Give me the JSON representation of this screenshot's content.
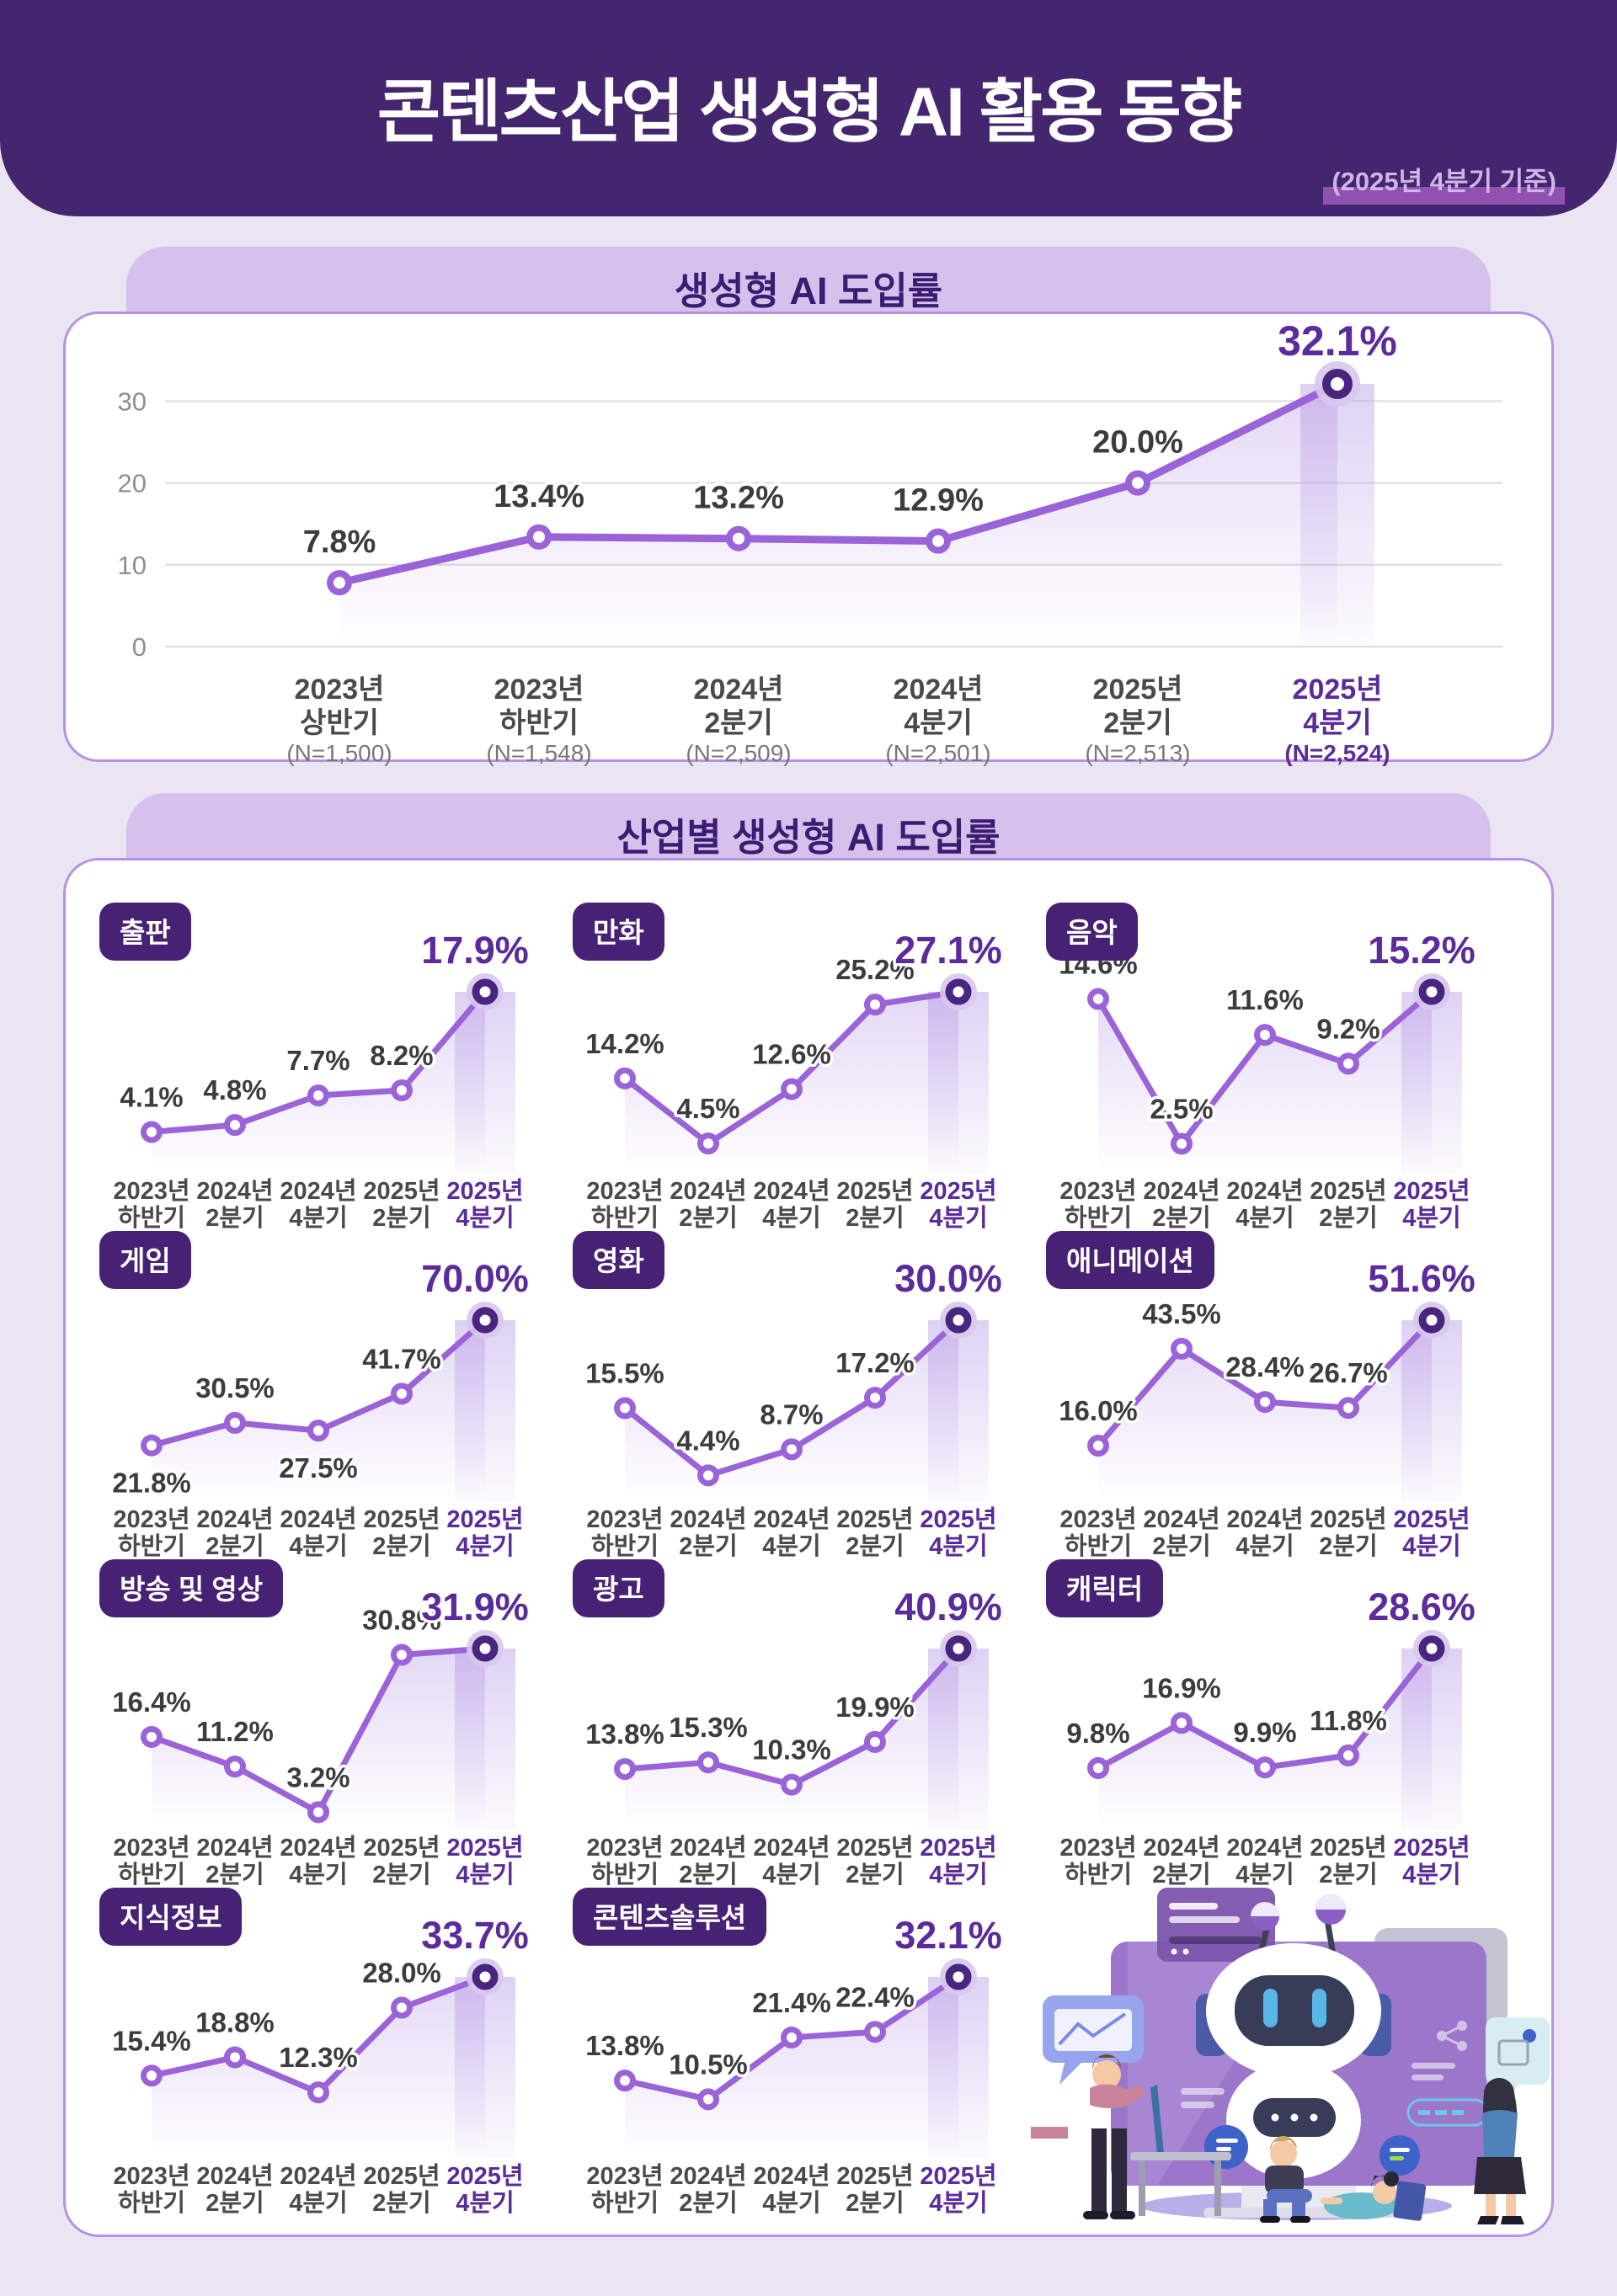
{
  "header": {
    "title": "콘텐츠산업 생성형 AI 활용 동향",
    "subtitle": "(2025년 4분기 기준)"
  },
  "sections": {
    "adoption": {
      "title": "생성형 AI 도입률"
    },
    "by_industry": {
      "title": "산업별 생성형 AI 도입률"
    }
  },
  "colors": {
    "page_bg": "#EAE5F2",
    "header_bg": "#44266F",
    "section_bar_bg": "#D5C1EC",
    "section_title": "#3C1C72",
    "card_border": "#B791E3",
    "badge_bg": "#472173",
    "line": "#9B63D8",
    "final_marker": "#4A2580",
    "marker_halo": "#D7C9EB",
    "value_label": "#3C3C3C",
    "value_highlight": "#5B2B9B",
    "axis_gray": "#8F8F8F",
    "xlabel_gray": "#4A4A4A",
    "grid_gray": "#DCDCDC"
  },
  "chart_data": [
    {
      "id": "overall-adoption",
      "type": "line",
      "title": "생성형 AI 도입률",
      "unit": "%",
      "categories": [
        "2023년 상반기",
        "2023년 하반기",
        "2024년 2분기",
        "2024년 4분기",
        "2025년 2분기",
        "2025년 4분기"
      ],
      "sample_sizes": [
        "(N=1,500)",
        "(N=1,548)",
        "(N=2,509)",
        "(N=2,501)",
        "(N=2,513)",
        "(N=2,524)"
      ],
      "values": [
        7.8,
        13.4,
        13.2,
        12.9,
        20.0,
        32.1
      ],
      "yticks": [
        0,
        10,
        20,
        30
      ],
      "ylim": [
        0,
        35
      ],
      "grid": true,
      "highlight_last": true
    },
    {
      "id": "publishing",
      "label": "출판",
      "type": "line",
      "unit": "%",
      "categories": [
        "2023년 하반기",
        "2024년 2분기",
        "2024년 4분기",
        "2025년 2분기",
        "2025년 4분기"
      ],
      "values": [
        4.1,
        4.8,
        7.7,
        8.2,
        17.9
      ],
      "highlight_last": true
    },
    {
      "id": "comics",
      "label": "만화",
      "type": "line",
      "unit": "%",
      "categories": [
        "2023년 하반기",
        "2024년 2분기",
        "2024년 4분기",
        "2025년 2분기",
        "2025년 4분기"
      ],
      "values": [
        14.2,
        4.5,
        12.6,
        25.2,
        27.1
      ],
      "highlight_last": true
    },
    {
      "id": "music",
      "label": "음악",
      "type": "line",
      "unit": "%",
      "categories": [
        "2023년 하반기",
        "2024년 2분기",
        "2024년 4분기",
        "2025년 2분기",
        "2025년 4분기"
      ],
      "values": [
        14.6,
        2.5,
        11.6,
        9.2,
        15.2
      ],
      "highlight_last": true
    },
    {
      "id": "game",
      "label": "게임",
      "type": "line",
      "unit": "%",
      "categories": [
        "2023년 하반기",
        "2024년 2분기",
        "2024년 4분기",
        "2025년 2분기",
        "2025년 4분기"
      ],
      "values": [
        21.8,
        30.5,
        27.5,
        41.7,
        70.0
      ],
      "label_below": [
        0,
        2
      ],
      "highlight_last": true
    },
    {
      "id": "film",
      "label": "영화",
      "type": "line",
      "unit": "%",
      "categories": [
        "2023년 하반기",
        "2024년 2분기",
        "2024년 4분기",
        "2025년 2분기",
        "2025년 4분기"
      ],
      "values": [
        15.5,
        4.4,
        8.7,
        17.2,
        30.0
      ],
      "highlight_last": true
    },
    {
      "id": "animation",
      "label": "애니메이션",
      "type": "line",
      "unit": "%",
      "categories": [
        "2023년 하반기",
        "2024년 2분기",
        "2024년 4분기",
        "2025년 2분기",
        "2025년 4분기"
      ],
      "values": [
        16.0,
        43.5,
        28.4,
        26.7,
        51.6
      ],
      "highlight_last": true
    },
    {
      "id": "broadcast-video",
      "label": "방송 및 영상",
      "type": "line",
      "unit": "%",
      "categories": [
        "2023년 하반기",
        "2024년 2분기",
        "2024년 4분기",
        "2025년 2분기",
        "2025년 4분기"
      ],
      "values": [
        16.4,
        11.2,
        3.2,
        30.8,
        31.9
      ],
      "highlight_last": true
    },
    {
      "id": "advertising",
      "label": "광고",
      "type": "line",
      "unit": "%",
      "categories": [
        "2023년 하반기",
        "2024년 2분기",
        "2024년 4분기",
        "2025년 2분기",
        "2025년 4분기"
      ],
      "values": [
        13.8,
        15.3,
        10.3,
        19.9,
        40.9
      ],
      "highlight_last": true
    },
    {
      "id": "character",
      "label": "캐릭터",
      "type": "line",
      "unit": "%",
      "categories": [
        "2023년 하반기",
        "2024년 2분기",
        "2024년 4분기",
        "2025년 2분기",
        "2025년 4분기"
      ],
      "values": [
        9.8,
        16.9,
        9.9,
        11.8,
        28.6
      ],
      "highlight_last": true
    },
    {
      "id": "knowledge-info",
      "label": "지식정보",
      "type": "line",
      "unit": "%",
      "categories": [
        "2023년 하반기",
        "2024년 2분기",
        "2024년 4분기",
        "2025년 2분기",
        "2025년 4분기"
      ],
      "values": [
        15.4,
        18.8,
        12.3,
        28.0,
        33.7
      ],
      "highlight_last": true
    },
    {
      "id": "content-solution",
      "label": "콘텐츠솔루션",
      "type": "line",
      "unit": "%",
      "categories": [
        "2023년 하반기",
        "2024년 2분기",
        "2024년 4분기",
        "2025년 2분기",
        "2025년 4분기"
      ],
      "values": [
        13.8,
        10.5,
        21.4,
        22.4,
        32.1
      ],
      "highlight_last": true
    }
  ]
}
